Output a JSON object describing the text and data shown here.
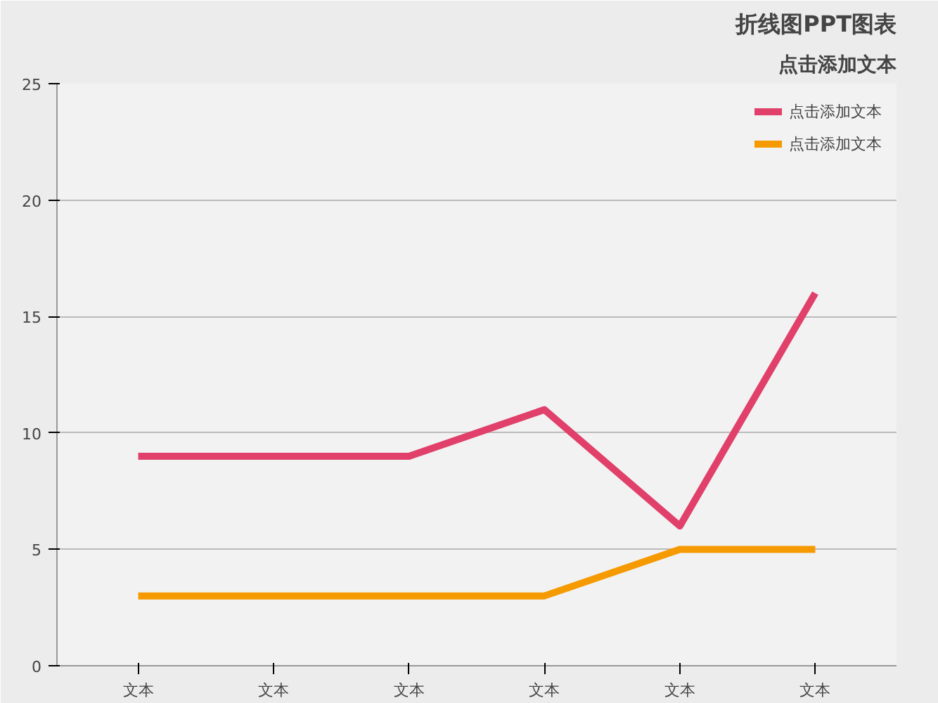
{
  "chart_data": {
    "type": "line",
    "title": "折线图PPT图表",
    "subtitle": "点击添加文本",
    "categories": [
      "文本",
      "文本",
      "文本",
      "文本",
      "文本",
      "文本"
    ],
    "series": [
      {
        "name": "点击添加文本",
        "color": "#e0406a",
        "values": [
          9,
          9,
          9,
          11,
          6,
          16
        ]
      },
      {
        "name": "点击添加文本",
        "color": "#f59a00",
        "values": [
          3,
          3,
          3,
          3,
          5,
          5
        ]
      }
    ],
    "ylim": [
      0,
      25
    ],
    "yticks": [
      0,
      5,
      10,
      15,
      20,
      25
    ],
    "grid": "y",
    "legend": "top right",
    "marker": "none",
    "line_style": "solid"
  }
}
